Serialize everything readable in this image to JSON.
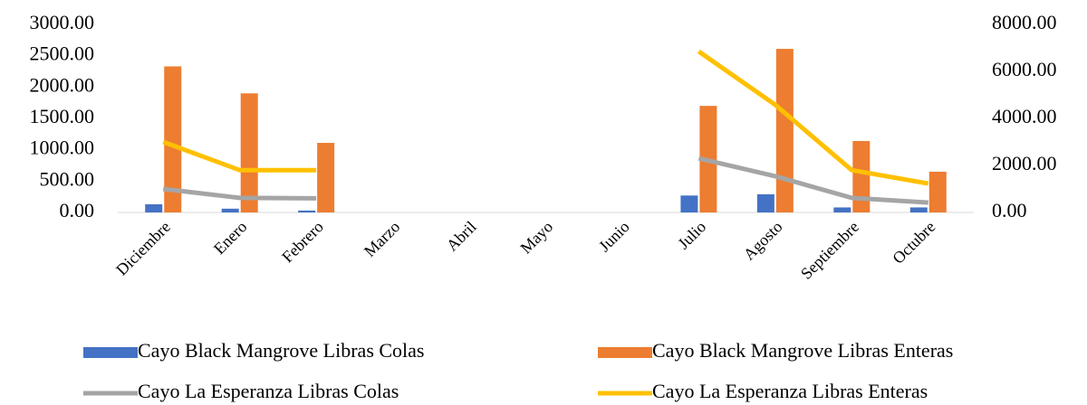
{
  "chart_data": {
    "type": "bar_line",
    "categories": [
      "Diciembre",
      "Enero",
      "Febrero",
      "Marzo",
      "Abril",
      "Mayo",
      "Junio",
      "Julio",
      "Agosto",
      "Septiembre",
      "Octubre"
    ],
    "series": [
      {
        "name": "Cayo Black Mangrove Libras Colas",
        "type": "bar",
        "color": "#4472c4",
        "values": [
          130,
          60,
          30,
          null,
          null,
          null,
          null,
          270,
          290,
          80,
          80
        ]
      },
      {
        "name": "Cayo Black Mangrove Libras Enteras",
        "type": "bar",
        "color": "#ed7d31",
        "values": [
          2330,
          1900,
          1110,
          null,
          null,
          null,
          null,
          1700,
          2610,
          1140,
          650
        ]
      },
      {
        "name": "Cayo La Esperanza Libras Colas",
        "type": "line",
        "axis": "y2",
        "color": "#a5a5a5",
        "values": [
          1000,
          620,
          600,
          null,
          null,
          null,
          null,
          2300,
          1540,
          620,
          420
        ]
      },
      {
        "name": "Cayo La Esperanza Libras Enteras",
        "type": "line",
        "axis": "y2",
        "color": "#ffc000",
        "values": [
          3000,
          1800,
          1800,
          null,
          null,
          null,
          null,
          6850,
          4580,
          1800,
          1230
        ]
      }
    ],
    "ylim": [
      0,
      3000
    ],
    "yticks": [
      {
        "value": 0,
        "label": "0.00"
      },
      {
        "value": 500,
        "label": "500.00"
      },
      {
        "value": 1000,
        "label": "1000.00"
      },
      {
        "value": 1500,
        "label": "1500.00"
      },
      {
        "value": 2000,
        "label": "2000.00"
      },
      {
        "value": 2500,
        "label": "2500.00"
      },
      {
        "value": 3000,
        "label": "3000.00"
      }
    ],
    "y2lim": [
      0,
      8000
    ],
    "y2ticks": [
      {
        "value": 0,
        "label": "0.00"
      },
      {
        "value": 2000,
        "label": "2000.00"
      },
      {
        "value": 4000,
        "label": "4000.00"
      },
      {
        "value": 6000,
        "label": "6000.00"
      },
      {
        "value": 8000,
        "label": "8000.00"
      }
    ],
    "legend": "bottom"
  }
}
